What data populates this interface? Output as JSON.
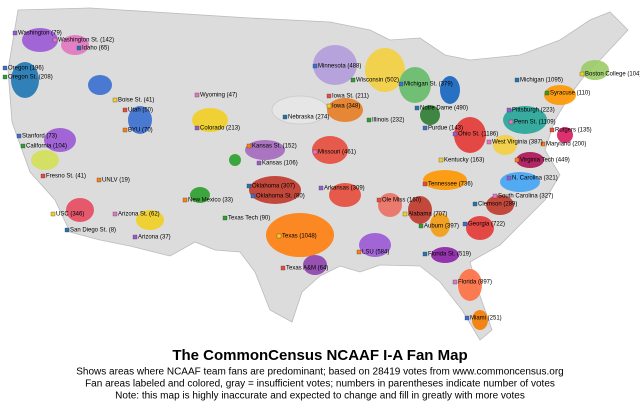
{
  "title": "The CommonCensus NCAAF I-A Fan Map",
  "caption": [
    "Shows areas where NCAAF team fans are predominant; based on 28419 votes from www.commoncensus.org",
    "Fan areas labeled and colored, gray = insufficient votes; numbers in parentheses indicate number of votes",
    "Note: this map is highly inaccurate and expected to change and fill in greatly with more votes"
  ],
  "labels": [
    "Washington (79)",
    "Washington St. (142)",
    "Idaho (65)",
    "Oregon (196)",
    "Oregon St. (208)",
    "Boise St. (41)",
    "Utah (50)",
    "BYU (70)",
    "Colorado (213)",
    "Wyoming (47)",
    "Nebraska (274)",
    "Minnesota (488)",
    "Wisconsin (502)",
    "Iowa (348)",
    "Iowa St. (211)",
    "Kansas St. (152)",
    "Kansas (106)",
    "Missouri (461)",
    "Oklahoma (307)",
    "Oklahoma St. (80)",
    "Texas Tech (90)",
    "Texas (1048)",
    "Texas A&M (64)",
    "New Mexico (33)",
    "Arizona (37)",
    "Arizona St. (62)",
    "San Diego St. (8)",
    "Stanford (73)",
    "California (104)",
    "USC (346)",
    "Fresno St. (41)",
    "UNLV (19)",
    "Ohio St. (1186)",
    "Penn St. (1109)",
    "Notre Dame (490)",
    "Purdue (143)",
    "Illinois (232)",
    "Kentucky (163)",
    "Tennessee (736)",
    "Virginia Tech (449)",
    "N. Carolina (321)",
    "South Carolina (327)",
    "Clemson (289)",
    "Georgia (722)",
    "Auburn (397)",
    "Alabama (707)",
    "Ole Miss (160)",
    "LSU (584)",
    "Arkansas (309)",
    "Florida (897)",
    "Florida St. (519)",
    "Miami (251)",
    "Syracuse (110)",
    "Boston College (104)",
    "Rutgers (135)",
    "Maryland (200)",
    "Pittsburgh (223)",
    "West Virginia (387)",
    "Michigan (1095)",
    "Michigan St. (379)"
  ]
}
